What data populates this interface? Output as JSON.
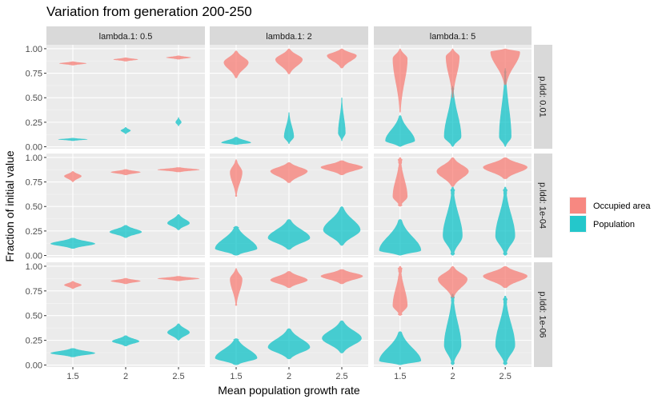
{
  "chart_data": {
    "type": "violin",
    "title": "Variation from generation 200-250",
    "xlabel": "Mean population growth rate",
    "ylabel": "Fraction of initial value",
    "x_categories": [
      "1.5",
      "2",
      "2.5"
    ],
    "y_ticks": [
      "0.00",
      "0.25",
      "0.50",
      "0.75",
      "1.00"
    ],
    "ylim": [
      -0.02,
      1.04
    ],
    "grid": true,
    "legend": {
      "position": "right",
      "entries": [
        {
          "name": "Occupied area",
          "color": "#F8766D"
        },
        {
          "name": "Population",
          "color": "#00BFC4"
        }
      ]
    },
    "facet_columns": [
      "lambda.1: 0.5",
      "lambda.1: 2",
      "lambda.1: 5"
    ],
    "facet_rows": [
      "p.ldd: 0.01",
      "p.ldd: 1e-04",
      "p.ldd: 1e-06"
    ],
    "panels": [
      {
        "row": 0,
        "col": 0,
        "occupied": [
          {
            "x": "1.5",
            "range": [
              0.83,
              0.87
            ],
            "peak": 0.85,
            "width": 0.55
          },
          {
            "x": "2",
            "range": [
              0.87,
              0.91
            ],
            "peak": 0.89,
            "width": 0.5
          },
          {
            "x": "2.5",
            "range": [
              0.89,
              0.93
            ],
            "peak": 0.91,
            "width": 0.5
          }
        ],
        "population": [
          {
            "x": "1.5",
            "range": [
              0.06,
              0.09
            ],
            "peak": 0.075,
            "width": 0.6
          },
          {
            "x": "2",
            "range": [
              0.13,
              0.2
            ],
            "peak": 0.165,
            "width": 0.2
          },
          {
            "x": "2.5",
            "range": [
              0.21,
              0.3
            ],
            "peak": 0.25,
            "width": 0.12
          }
        ]
      },
      {
        "row": 0,
        "col": 1,
        "occupied": [
          {
            "x": "1.5",
            "range": [
              0.7,
              0.98
            ],
            "peak": 0.86,
            "width": 0.5,
            "tail": 0.06
          },
          {
            "x": "2",
            "range": [
              0.74,
              1.0
            ],
            "peak": 0.89,
            "width": 0.55,
            "tail": 0.06
          },
          {
            "x": "2.5",
            "range": [
              0.8,
              1.0
            ],
            "peak": 0.93,
            "width": 0.6,
            "tail": 0.06
          }
        ],
        "population": [
          {
            "x": "1.5",
            "range": [
              0.02,
              0.1
            ],
            "peak": 0.04,
            "width": 0.6,
            "tail": 0.08
          },
          {
            "x": "2",
            "range": [
              0.03,
              0.35
            ],
            "peak": 0.1,
            "width": 0.2,
            "tail": 0.1
          },
          {
            "x": "2.5",
            "range": [
              0.06,
              0.5
            ],
            "peak": 0.14,
            "width": 0.15,
            "tail": 0.1
          }
        ]
      },
      {
        "row": 0,
        "col": 2,
        "occupied": [
          {
            "x": "1.5",
            "range": [
              0.35,
              1.0
            ],
            "peak": 0.9,
            "width": 0.3,
            "tail": 0.1
          },
          {
            "x": "2",
            "range": [
              0.5,
              1.0
            ],
            "peak": 0.92,
            "width": 0.28,
            "tail": 0.12
          },
          {
            "x": "2.5",
            "range": [
              0.63,
              1.0
            ],
            "peak": 0.97,
            "width": 0.6,
            "tail": 0.06
          }
        ],
        "population": [
          {
            "x": "1.5",
            "range": [
              0.0,
              0.32
            ],
            "peak": 0.06,
            "width": 0.6,
            "tail": 0.1
          },
          {
            "x": "2",
            "range": [
              0.0,
              0.62
            ],
            "peak": 0.1,
            "width": 0.35,
            "tail": 0.18
          },
          {
            "x": "2.5",
            "range": [
              0.0,
              0.8
            ],
            "peak": 0.1,
            "width": 0.25,
            "tail": 0.2
          }
        ]
      },
      {
        "row": 1,
        "col": 0,
        "occupied": [
          {
            "x": "1.5",
            "range": [
              0.75,
              0.86
            ],
            "peak": 0.81,
            "width": 0.35
          },
          {
            "x": "2",
            "range": [
              0.82,
              0.88
            ],
            "peak": 0.85,
            "width": 0.6
          },
          {
            "x": "2.5",
            "range": [
              0.85,
              0.9
            ],
            "peak": 0.875,
            "width": 0.85
          }
        ],
        "population": [
          {
            "x": "1.5",
            "range": [
              0.07,
              0.18
            ],
            "peak": 0.12,
            "width": 0.9
          },
          {
            "x": "2",
            "range": [
              0.18,
              0.31
            ],
            "peak": 0.24,
            "width": 0.65
          },
          {
            "x": "2.5",
            "range": [
              0.26,
              0.42
            ],
            "peak": 0.33,
            "width": 0.45
          }
        ]
      },
      {
        "row": 1,
        "col": 1,
        "occupied": [
          {
            "x": "1.5",
            "range": [
              0.6,
              0.98
            ],
            "peak": 0.85,
            "width": 0.25,
            "tail": 0.2
          },
          {
            "x": "2",
            "range": [
              0.74,
              0.95
            ],
            "peak": 0.86,
            "width": 0.75,
            "tail": 0.06
          },
          {
            "x": "2.5",
            "range": [
              0.82,
              0.97
            ],
            "peak": 0.9,
            "width": 0.85,
            "tail": 0.06
          }
        ],
        "population": [
          {
            "x": "1.5",
            "range": [
              0.0,
              0.3
            ],
            "peak": 0.07,
            "width": 0.85,
            "tail": 0.15
          },
          {
            "x": "2",
            "range": [
              0.06,
              0.37
            ],
            "peak": 0.18,
            "width": 0.85,
            "tail": 0.08
          },
          {
            "x": "2.5",
            "range": [
              0.1,
              0.5
            ],
            "peak": 0.26,
            "width": 0.75,
            "tail": 0.08
          }
        ]
      },
      {
        "row": 1,
        "col": 2,
        "occupied": [
          {
            "x": "1.5",
            "range": [
              0.5,
              1.0
            ],
            "peak": 0.6,
            "width": 0.3,
            "tail": 0.35
          },
          {
            "x": "2",
            "range": [
              0.7,
              1.0
            ],
            "peak": 0.86,
            "width": 0.65,
            "tail": 0.1
          },
          {
            "x": "2.5",
            "range": [
              0.78,
              1.0
            ],
            "peak": 0.9,
            "width": 0.9,
            "tail": 0.1
          }
        ],
        "population": [
          {
            "x": "1.5",
            "range": [
              0.0,
              0.37
            ],
            "peak": 0.05,
            "width": 0.85,
            "tail": 0.1
          },
          {
            "x": "2",
            "range": [
              0.0,
              0.7
            ],
            "peak": 0.2,
            "width": 0.4,
            "tail": 0.25
          },
          {
            "x": "2.5",
            "range": [
              0.0,
              0.7
            ],
            "peak": 0.2,
            "width": 0.4,
            "tail": 0.25
          }
        ]
      },
      {
        "row": 2,
        "col": 0,
        "occupied": [
          {
            "x": "1.5",
            "range": [
              0.77,
              0.85
            ],
            "peak": 0.81,
            "width": 0.35
          },
          {
            "x": "2",
            "range": [
              0.82,
              0.88
            ],
            "peak": 0.85,
            "width": 0.6
          },
          {
            "x": "2.5",
            "range": [
              0.85,
              0.9
            ],
            "peak": 0.875,
            "width": 0.85
          }
        ],
        "population": [
          {
            "x": "1.5",
            "range": [
              0.08,
              0.17
            ],
            "peak": 0.12,
            "width": 0.9
          },
          {
            "x": "2",
            "range": [
              0.19,
              0.3
            ],
            "peak": 0.24,
            "width": 0.55
          },
          {
            "x": "2.5",
            "range": [
              0.25,
              0.42
            ],
            "peak": 0.33,
            "width": 0.45
          }
        ]
      },
      {
        "row": 2,
        "col": 1,
        "occupied": [
          {
            "x": "1.5",
            "range": [
              0.6,
              0.98
            ],
            "peak": 0.87,
            "width": 0.25,
            "tail": 0.2
          },
          {
            "x": "2",
            "range": [
              0.78,
              0.95
            ],
            "peak": 0.86,
            "width": 0.75,
            "tail": 0.06
          },
          {
            "x": "2.5",
            "range": [
              0.82,
              0.97
            ],
            "peak": 0.9,
            "width": 0.85,
            "tail": 0.06
          }
        ],
        "population": [
          {
            "x": "1.5",
            "range": [
              0.0,
              0.27
            ],
            "peak": 0.07,
            "width": 0.85,
            "tail": 0.15
          },
          {
            "x": "2",
            "range": [
              0.06,
              0.37
            ],
            "peak": 0.18,
            "width": 0.85,
            "tail": 0.08
          },
          {
            "x": "2.5",
            "range": [
              0.12,
              0.45
            ],
            "peak": 0.27,
            "width": 0.8,
            "tail": 0.08
          }
        ]
      },
      {
        "row": 2,
        "col": 2,
        "occupied": [
          {
            "x": "1.5",
            "range": [
              0.5,
              1.0
            ],
            "peak": 0.6,
            "width": 0.3,
            "tail": 0.35
          },
          {
            "x": "2",
            "range": [
              0.68,
              1.0
            ],
            "peak": 0.87,
            "width": 0.6,
            "tail": 0.1
          },
          {
            "x": "2.5",
            "range": [
              0.78,
              1.0
            ],
            "peak": 0.9,
            "width": 0.9,
            "tail": 0.1
          }
        ],
        "population": [
          {
            "x": "1.5",
            "range": [
              0.0,
              0.34
            ],
            "peak": 0.04,
            "width": 0.85,
            "tail": 0.1
          },
          {
            "x": "2",
            "range": [
              0.0,
              0.72
            ],
            "peak": 0.2,
            "width": 0.35,
            "tail": 0.25
          },
          {
            "x": "2.5",
            "range": [
              0.0,
              0.7
            ],
            "peak": 0.2,
            "width": 0.4,
            "tail": 0.25
          }
        ]
      }
    ]
  }
}
